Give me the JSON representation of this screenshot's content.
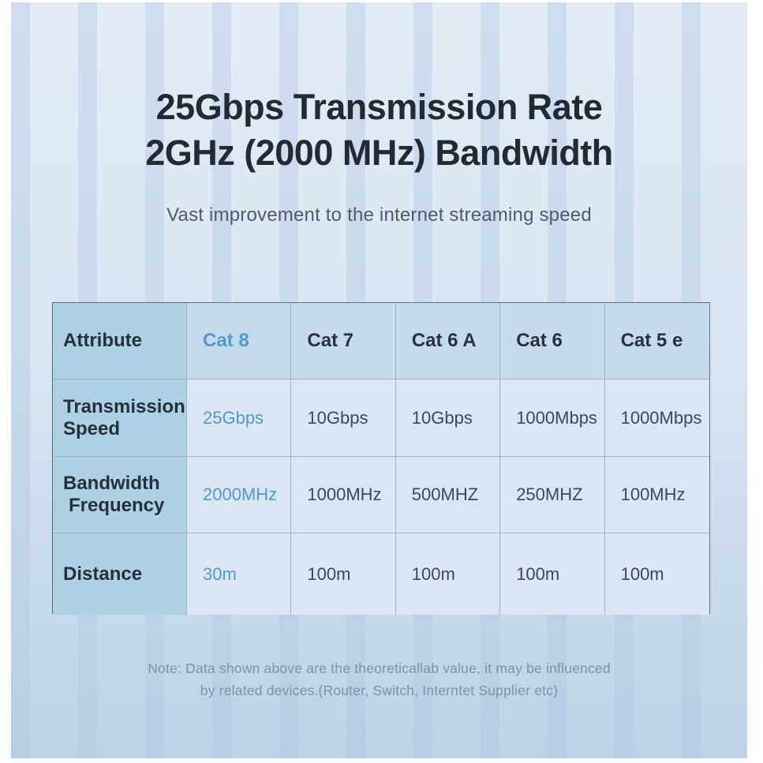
{
  "title": {
    "line1": "25Gbps Transmission Rate",
    "line2": "2GHz (2000 MHz) Bandwidth"
  },
  "subtitle": "Vast improvement to the internet streaming speed",
  "table": {
    "headers": [
      "Attribute",
      "Cat 8",
      "Cat 7",
      "Cat 6 A",
      "Cat 6",
      "Cat 5 e"
    ],
    "highlight_column": "Cat 8",
    "rows": [
      {
        "label_line1": "Transmission",
        "label_line2": "Speed",
        "values": [
          "25Gbps",
          "10Gbps",
          "10Gbps",
          "1000Mbps",
          "1000Mbps"
        ]
      },
      {
        "label_line1": "Bandwidth",
        "label_line2": "Frequency",
        "values": [
          "2000MHz",
          "1000MHz",
          "500MHZ",
          "250MHZ",
          "100MHz"
        ]
      },
      {
        "label_line1": "Distance",
        "label_line2": "",
        "values": [
          "30m",
          "100m",
          "100m",
          "100m",
          "100m"
        ]
      }
    ]
  },
  "note": {
    "line1": "Note: Data shown above are the theoreticallab value, it may be influenced",
    "line2": "by related devices.(Router, Switch, Interntet Supplier etc)"
  },
  "colors": {
    "highlight_blue": "#4f9bce",
    "title_dark": "#242a33",
    "subtitle_gray": "#4d5c6b",
    "note_gray": "#8093a3",
    "label_column_bg": "#aed0e4",
    "header_row_bg": "#c5dbec",
    "data_cell_bg": "#dae7f3",
    "table_outer_border": "#5c7080",
    "table_inner_border": "#9cb3c4",
    "panel_bg_top": "#e3ecf5",
    "panel_bg_bottom": "#bcd2e7"
  },
  "chart_data": {
    "type": "table",
    "title": "25Gbps Transmission Rate 2GHz (2000 MHz) Bandwidth",
    "subtitle": "Vast improvement to the internet streaming speed",
    "columns": [
      "Attribute",
      "Cat 8",
      "Cat 7",
      "Cat 6 A",
      "Cat 6",
      "Cat 5 e"
    ],
    "rows": [
      [
        "Transmission Speed",
        "25Gbps",
        "10Gbps",
        "10Gbps",
        "1000Mbps",
        "1000Mbps"
      ],
      [
        "Bandwidth Frequency",
        "2000MHz",
        "1000MHz",
        "500MHZ",
        "250MHZ",
        "100MHz"
      ],
      [
        "Distance",
        "30m",
        "100m",
        "100m",
        "100m",
        "100m"
      ]
    ],
    "note": "Note: Data shown above are the theoreticallab value, it may be influenced by related devices.(Router, Switch, Interntet Supplier etc)"
  }
}
